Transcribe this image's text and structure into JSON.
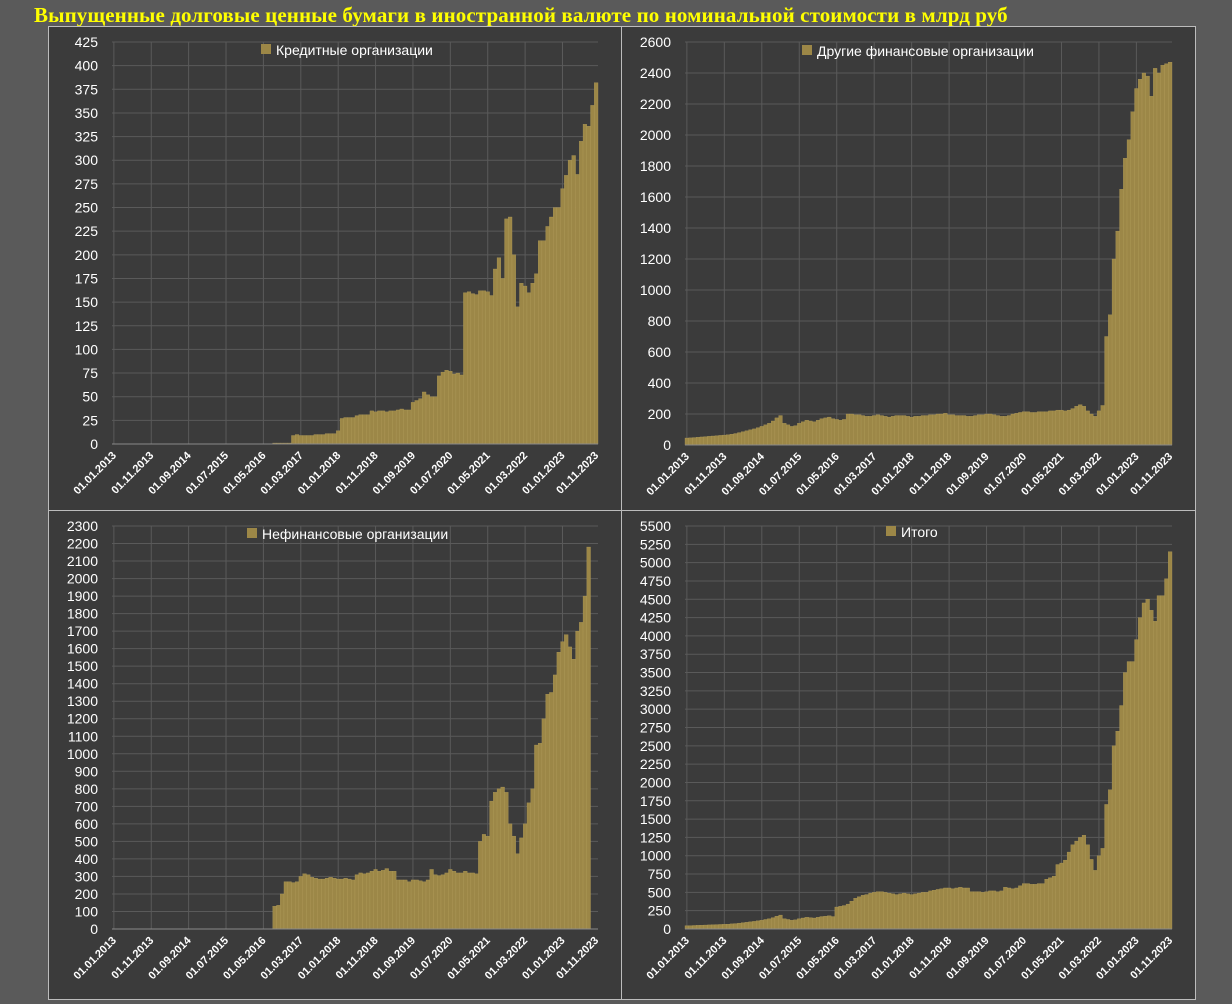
{
  "page": {
    "title": "Выпущенные долговые ценные бумаги в иностранной валюте по номинальной стоимости в млрд руб"
  },
  "colors": {
    "bar": "#9c8747",
    "bar_edge": "#b8a25e",
    "grid": "#5a5a5a",
    "panel_bg": "#3b3b3b",
    "title": "#ffff00",
    "text": "#ffffff"
  },
  "chart_data": [
    {
      "type": "bar",
      "series": [
        {
          "name": "Кредитные организации",
          "values": [
            0,
            0,
            0,
            0,
            0,
            0,
            0,
            0,
            0,
            0,
            0,
            0,
            0,
            0,
            0,
            0,
            0,
            0,
            0,
            0,
            0,
            0,
            0,
            0,
            0,
            0,
            0,
            0,
            0,
            0,
            0,
            0,
            0,
            0,
            0,
            0,
            0,
            0,
            0,
            0,
            0,
            0,
            0,
            1,
            1,
            1,
            1,
            1,
            9,
            10,
            9,
            9,
            9,
            9,
            10,
            10,
            10,
            11,
            11,
            11,
            14,
            27,
            28,
            28,
            28,
            30,
            31,
            31,
            31,
            35,
            34,
            35,
            35,
            34,
            35,
            35,
            36,
            37,
            36,
            36,
            44,
            46,
            48,
            55,
            52,
            50,
            50,
            72,
            76,
            78,
            77,
            74,
            75,
            73,
            160,
            161,
            159,
            158,
            162,
            162,
            161,
            157,
            185,
            197,
            175,
            238,
            240,
            200,
            145,
            170,
            167,
            160,
            170,
            180,
            215,
            215,
            230,
            240,
            250,
            250,
            270,
            284,
            300,
            305,
            285,
            320,
            338,
            336,
            358,
            382
          ]
        }
      ],
      "x": [
        "01.01.2013",
        "01.02.2013",
        "01.03.2013",
        "01.04.2013",
        "01.05.2013",
        "01.06.2013",
        "01.07.2013",
        "01.08.2013",
        "01.09.2013",
        "01.10.2013",
        "01.11.2013",
        "01.12.2013",
        "01.01.2014",
        "01.02.2014",
        "01.03.2014",
        "01.04.2014",
        "01.05.2014",
        "01.06.2014",
        "01.07.2014",
        "01.08.2014",
        "01.09.2014",
        "01.10.2014",
        "01.11.2014",
        "01.12.2014",
        "01.01.2015",
        "01.02.2015",
        "01.03.2015",
        "01.04.2015",
        "01.05.2015",
        "01.06.2015",
        "01.07.2015",
        "01.08.2015",
        "01.09.2015",
        "01.10.2015",
        "01.11.2015",
        "01.12.2015",
        "01.01.2016",
        "01.02.2016",
        "01.03.2016",
        "01.04.2016",
        "01.05.2016",
        "01.06.2016",
        "01.07.2016",
        "01.08.2016",
        "01.09.2016",
        "01.10.2016",
        "01.11.2016",
        "01.12.2016",
        "01.01.2017",
        "01.02.2017",
        "01.03.2017",
        "01.04.2017",
        "01.05.2017",
        "01.06.2017",
        "01.07.2017",
        "01.08.2017",
        "01.09.2017",
        "01.10.2017",
        "01.11.2017",
        "01.12.2017",
        "01.01.2018",
        "01.02.2018",
        "01.03.2018",
        "01.04.2018",
        "01.05.2018",
        "01.06.2018",
        "01.07.2018",
        "01.08.2018",
        "01.09.2018",
        "01.10.2018",
        "01.11.2018",
        "01.12.2018",
        "01.01.2019",
        "01.02.2019",
        "01.03.2019",
        "01.04.2019",
        "01.05.2019",
        "01.06.2019",
        "01.07.2019",
        "01.08.2019",
        "01.09.2019",
        "01.10.2019",
        "01.11.2019",
        "01.12.2019",
        "01.01.2020",
        "01.02.2020",
        "01.03.2020",
        "01.04.2020",
        "01.05.2020",
        "01.06.2020",
        "01.07.2020",
        "01.08.2020",
        "01.09.2020",
        "01.10.2020",
        "01.11.2020",
        "01.12.2020",
        "01.01.2021",
        "01.02.2021",
        "01.03.2021",
        "01.04.2021",
        "01.05.2021",
        "01.06.2021",
        "01.07.2021",
        "01.08.2021",
        "01.09.2021",
        "01.10.2021",
        "01.11.2021",
        "01.12.2021",
        "01.01.2022",
        "01.02.2022",
        "01.03.2022",
        "01.04.2022",
        "01.05.2022",
        "01.06.2022",
        "01.07.2022",
        "01.08.2022",
        "01.09.2022",
        "01.10.2022",
        "01.11.2022",
        "01.12.2022",
        "01.01.2023",
        "01.02.2023",
        "01.03.2023",
        "01.04.2023",
        "01.05.2023",
        "01.06.2023",
        "01.07.2023",
        "01.08.2023",
        "01.09.2023",
        "01.10.2023"
      ],
      "x_tick_labels": [
        "01.01.2013",
        "01.11.2013",
        "01.09.2014",
        "01.07.2015",
        "01.05.2016",
        "01.03.2017",
        "01.01.2018",
        "01.11.2018",
        "01.09.2019",
        "01.07.2020",
        "01.05.2021",
        "01.03.2022",
        "01.01.2023",
        "01.11.2023"
      ],
      "y_tick_labels": [
        "0",
        "25",
        "50",
        "75",
        "100",
        "125",
        "150",
        "175",
        "200",
        "225",
        "250",
        "275",
        "300",
        "325",
        "350",
        "375",
        "400",
        "425"
      ],
      "ylim": [
        0,
        425
      ],
      "grid": true,
      "legend_position": "top-center"
    },
    {
      "type": "bar",
      "series": [
        {
          "name": "Другие финансовые организации",
          "values": [
            45,
            46,
            48,
            50,
            52,
            54,
            56,
            58,
            60,
            62,
            64,
            66,
            70,
            74,
            80,
            86,
            92,
            98,
            104,
            112,
            120,
            130,
            140,
            155,
            175,
            190,
            140,
            130,
            120,
            125,
            140,
            150,
            160,
            155,
            150,
            160,
            170,
            175,
            180,
            170,
            165,
            160,
            165,
            200,
            200,
            195,
            195,
            190,
            185,
            185,
            190,
            195,
            190,
            185,
            180,
            185,
            190,
            190,
            190,
            185,
            180,
            185,
            185,
            190,
            190,
            195,
            195,
            200,
            200,
            205,
            195,
            195,
            190,
            190,
            190,
            185,
            185,
            190,
            195,
            195,
            200,
            200,
            195,
            190,
            185,
            185,
            190,
            200,
            205,
            210,
            215,
            215,
            210,
            210,
            215,
            215,
            215,
            220,
            220,
            225,
            225,
            220,
            225,
            235,
            250,
            260,
            250,
            220,
            200,
            185,
            220,
            255,
            700,
            840,
            1200,
            1380,
            1650,
            1850,
            1970,
            2150,
            2300,
            2360,
            2400,
            2380,
            2250,
            2430,
            2400,
            2450,
            2460,
            2470
          ]
        }
      ],
      "x": "same as chart 1",
      "x_tick_labels": [
        "01.01.2013",
        "01.11.2013",
        "01.09.2014",
        "01.07.2015",
        "01.05.2016",
        "01.03.2017",
        "01.01.2018",
        "01.11.2018",
        "01.09.2019",
        "01.07.2020",
        "01.05.2021",
        "01.03.2022",
        "01.01.2023",
        "01.11.2023"
      ],
      "y_tick_labels": [
        "0",
        "200",
        "400",
        "600",
        "800",
        "1000",
        "1200",
        "1400",
        "1600",
        "1800",
        "2000",
        "2200",
        "2400",
        "2600"
      ],
      "ylim": [
        0,
        2600
      ],
      "grid": true,
      "legend_position": "top-center"
    },
    {
      "type": "bar",
      "series": [
        {
          "name": "Нефинансовые организации",
          "values": [
            0,
            0,
            0,
            0,
            0,
            0,
            0,
            0,
            0,
            0,
            0,
            0,
            0,
            0,
            0,
            0,
            0,
            0,
            0,
            0,
            0,
            0,
            0,
            0,
            0,
            0,
            0,
            0,
            0,
            0,
            0,
            0,
            0,
            0,
            0,
            0,
            0,
            0,
            0,
            0,
            0,
            0,
            0,
            130,
            135,
            200,
            270,
            270,
            265,
            270,
            300,
            315,
            310,
            295,
            290,
            285,
            285,
            290,
            295,
            290,
            285,
            285,
            290,
            285,
            280,
            310,
            320,
            315,
            320,
            330,
            340,
            330,
            335,
            345,
            330,
            330,
            280,
            280,
            280,
            270,
            280,
            280,
            275,
            270,
            280,
            340,
            310,
            305,
            310,
            320,
            340,
            330,
            320,
            320,
            330,
            320,
            320,
            315,
            500,
            540,
            530,
            730,
            780,
            800,
            810,
            780,
            600,
            530,
            430,
            520,
            600,
            720,
            800,
            1050,
            1060,
            1200,
            1340,
            1350,
            1450,
            1580,
            1640,
            1680,
            1610,
            1540,
            1700,
            1750,
            1900,
            2180
          ]
        }
      ],
      "x": "same as chart 1",
      "x_tick_labels": [
        "01.01.2013",
        "01.11.2013",
        "01.09.2014",
        "01.07.2015",
        "01.05.2016",
        "01.03.2017",
        "01.01.2018",
        "01.11.2018",
        "01.09.2019",
        "01.07.2020",
        "01.05.2021",
        "01.03.2022",
        "01.01.2023",
        "01.11.2023"
      ],
      "y_tick_labels": [
        "0",
        "100",
        "200",
        "300",
        "400",
        "500",
        "600",
        "700",
        "800",
        "900",
        "1000",
        "1100",
        "1200",
        "1300",
        "1400",
        "1500",
        "1600",
        "1700",
        "1800",
        "1900",
        "2000",
        "2100",
        "2200",
        "2300"
      ],
      "ylim": [
        0,
        2300
      ],
      "grid": true,
      "legend_position": "top-center"
    },
    {
      "type": "bar",
      "series": [
        {
          "name": "Итого",
          "values": [
            45,
            46,
            48,
            50,
            52,
            54,
            56,
            58,
            60,
            62,
            64,
            66,
            70,
            74,
            80,
            86,
            92,
            98,
            104,
            112,
            120,
            130,
            140,
            155,
            175,
            190,
            140,
            130,
            120,
            125,
            140,
            150,
            160,
            155,
            150,
            160,
            170,
            175,
            180,
            170,
            300,
            310,
            320,
            340,
            380,
            420,
            440,
            460,
            470,
            490,
            500,
            510,
            510,
            500,
            490,
            480,
            470,
            480,
            490,
            480,
            470,
            480,
            490,
            500,
            500,
            520,
            530,
            540,
            550,
            560,
            560,
            550,
            560,
            570,
            560,
            560,
            510,
            510,
            510,
            500,
            510,
            520,
            520,
            510,
            520,
            570,
            560,
            550,
            560,
            590,
            620,
            620,
            610,
            610,
            620,
            620,
            680,
            700,
            720,
            880,
            900,
            940,
            1050,
            1150,
            1200,
            1250,
            1280,
            1150,
            950,
            800,
            1000,
            1100,
            1700,
            1900,
            2500,
            2700,
            3050,
            3500,
            3650,
            3650,
            3950,
            4250,
            4450,
            4500,
            4350,
            4200,
            4550,
            4550,
            4780,
            5150
          ]
        }
      ],
      "x": "same as chart 1",
      "x_tick_labels": [
        "01.01.2013",
        "01.11.2013",
        "01.09.2014",
        "01.07.2015",
        "01.05.2016",
        "01.03.2017",
        "01.01.2018",
        "01.11.2018",
        "01.09.2019",
        "01.07.2020",
        "01.05.2021",
        "01.03.2022",
        "01.01.2023",
        "01.11.2023"
      ],
      "y_tick_labels": [
        "0",
        "250",
        "500",
        "750",
        "1000",
        "1250",
        "1500",
        "1750",
        "2000",
        "2250",
        "2500",
        "2750",
        "3000",
        "3250",
        "3500",
        "3750",
        "4000",
        "4250",
        "4500",
        "4750",
        "5000",
        "5250",
        "5500"
      ],
      "ylim": [
        0,
        5500
      ],
      "grid": true,
      "legend_position": "top-center"
    }
  ]
}
